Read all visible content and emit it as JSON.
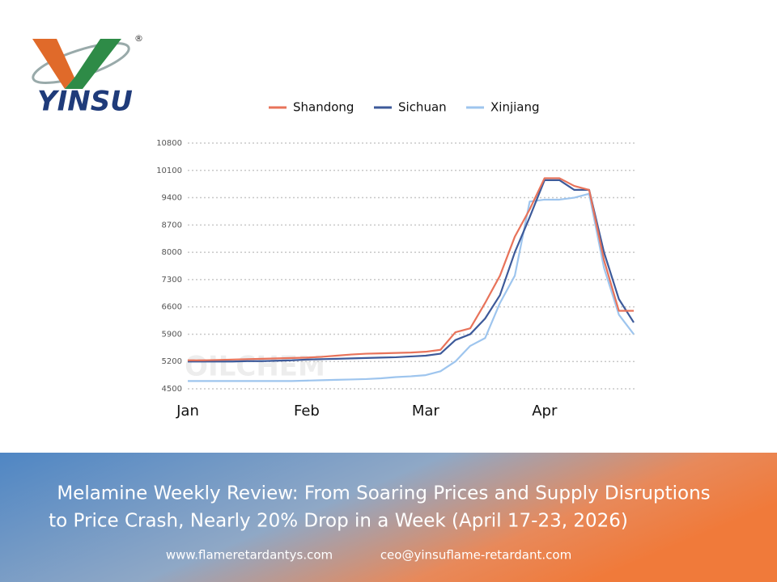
{
  "logo": {
    "name": "YINSU",
    "mark": "®"
  },
  "chart_data": {
    "type": "line",
    "watermark": "OILCHEM",
    "categories": [
      "Jan",
      null,
      null,
      null,
      null,
      null,
      null,
      null,
      "Feb",
      null,
      null,
      null,
      null,
      null,
      null,
      null,
      "Mar",
      null,
      null,
      null,
      null,
      null,
      null,
      null,
      "Apr",
      null,
      null,
      null,
      null,
      null,
      null
    ],
    "series": [
      {
        "name": "Shandong",
        "color": "#e8735a",
        "values": [
          5230,
          5230,
          5240,
          5250,
          5260,
          5270,
          5280,
          5290,
          5300,
          5320,
          5350,
          5380,
          5400,
          5410,
          5420,
          5430,
          5450,
          5500,
          5950,
          6050,
          6700,
          7400,
          8400,
          9100,
          9900,
          9900,
          9700,
          9600,
          7800,
          6500,
          6500
        ]
      },
      {
        "name": "Sichuan",
        "color": "#3d5a9a",
        "values": [
          5200,
          5200,
          5200,
          5200,
          5210,
          5210,
          5220,
          5230,
          5250,
          5260,
          5270,
          5280,
          5290,
          5300,
          5310,
          5330,
          5350,
          5400,
          5750,
          5900,
          6300,
          6900,
          8000,
          8900,
          9850,
          9850,
          9600,
          9600,
          8000,
          6800,
          6200
        ]
      },
      {
        "name": "Xinjiang",
        "color": "#9ec5ee",
        "values": [
          4700,
          4700,
          4700,
          4700,
          4700,
          4700,
          4700,
          4700,
          4710,
          4720,
          4730,
          4740,
          4750,
          4770,
          4800,
          4820,
          4850,
          4950,
          5200,
          5600,
          5800,
          6700,
          7400,
          9300,
          9350,
          9350,
          9400,
          9500,
          7600,
          6400,
          5900
        ]
      }
    ],
    "ylim": [
      4500,
      10800
    ],
    "yticks": [
      4500,
      5200,
      5900,
      6600,
      7300,
      8000,
      8700,
      9400,
      10100,
      10800
    ],
    "grid": true,
    "legend": "top"
  },
  "banner": {
    "headline": [
      "Melamine Weekly Review: From Soaring Prices and Supply Disruptions",
      "to Price Crash, Nearly 20% Drop in a Week (April 17-23, 2026)"
    ],
    "website": "www.flameretardantys.com",
    "email": "ceo@yinsuflame-retardant.com"
  }
}
